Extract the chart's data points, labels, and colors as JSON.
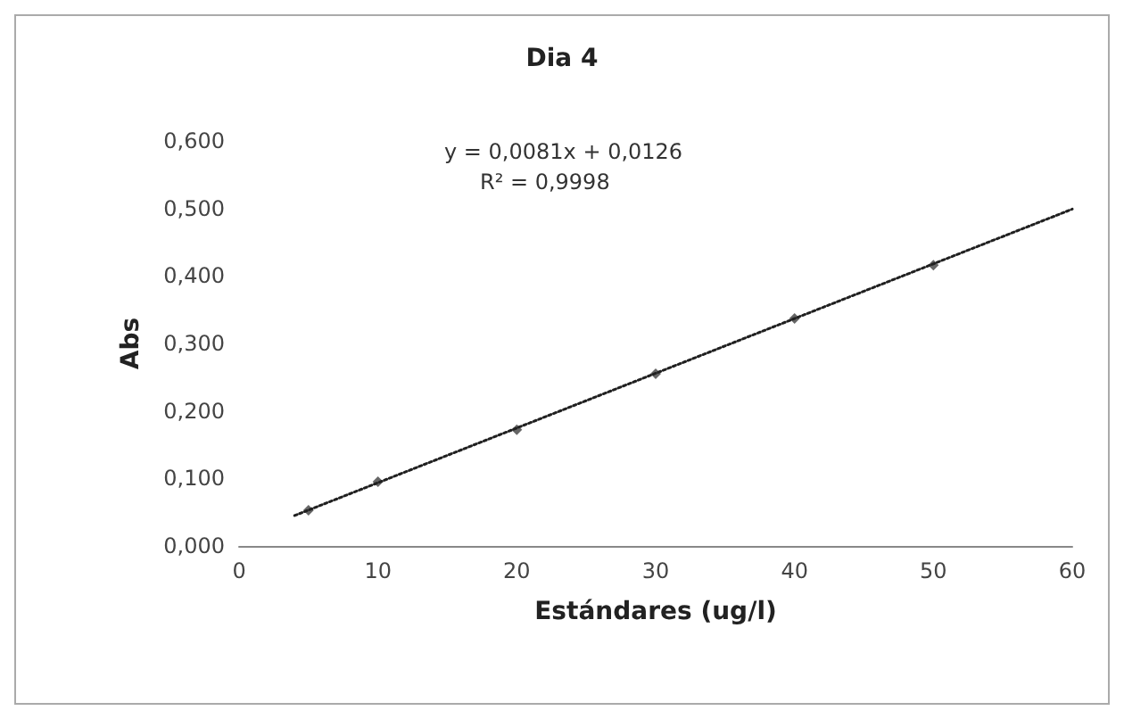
{
  "chart_data": {
    "type": "scatter",
    "title": "Dia 4",
    "xlabel": "Estándares (ug/l)",
    "ylabel": "Abs",
    "xlim": [
      0,
      60
    ],
    "xticks": [
      0,
      10,
      20,
      30,
      40,
      50,
      60
    ],
    "ylim": [
      0,
      0.6
    ],
    "yticks": [
      {
        "value": 0,
        "label": "0,000"
      },
      {
        "value": 0.1,
        "label": "0,100"
      },
      {
        "value": 0.2,
        "label": "0,200"
      },
      {
        "value": 0.3,
        "label": "0,300"
      },
      {
        "value": 0.4,
        "label": "0,400"
      },
      {
        "value": 0.5,
        "label": "0,500"
      },
      {
        "value": 0.6,
        "label": "0,600"
      }
    ],
    "grid": false,
    "series": [
      {
        "color": "#404040",
        "marker": "diamond",
        "x": [
          5,
          10,
          20,
          30,
          40,
          50
        ],
        "values": [
          0.053,
          0.095,
          0.172,
          0.255,
          0.337,
          0.416
        ]
      },
      {
        "type": "line",
        "color": "#202020",
        "marker": "none",
        "line_style": "dotted",
        "x": [
          4,
          60
        ],
        "values": [
          0.045,
          0.499
        ]
      }
    ],
    "annotations": [
      "y = 0,0081x + 0,0126",
      "R² = 0,9998"
    ]
  }
}
